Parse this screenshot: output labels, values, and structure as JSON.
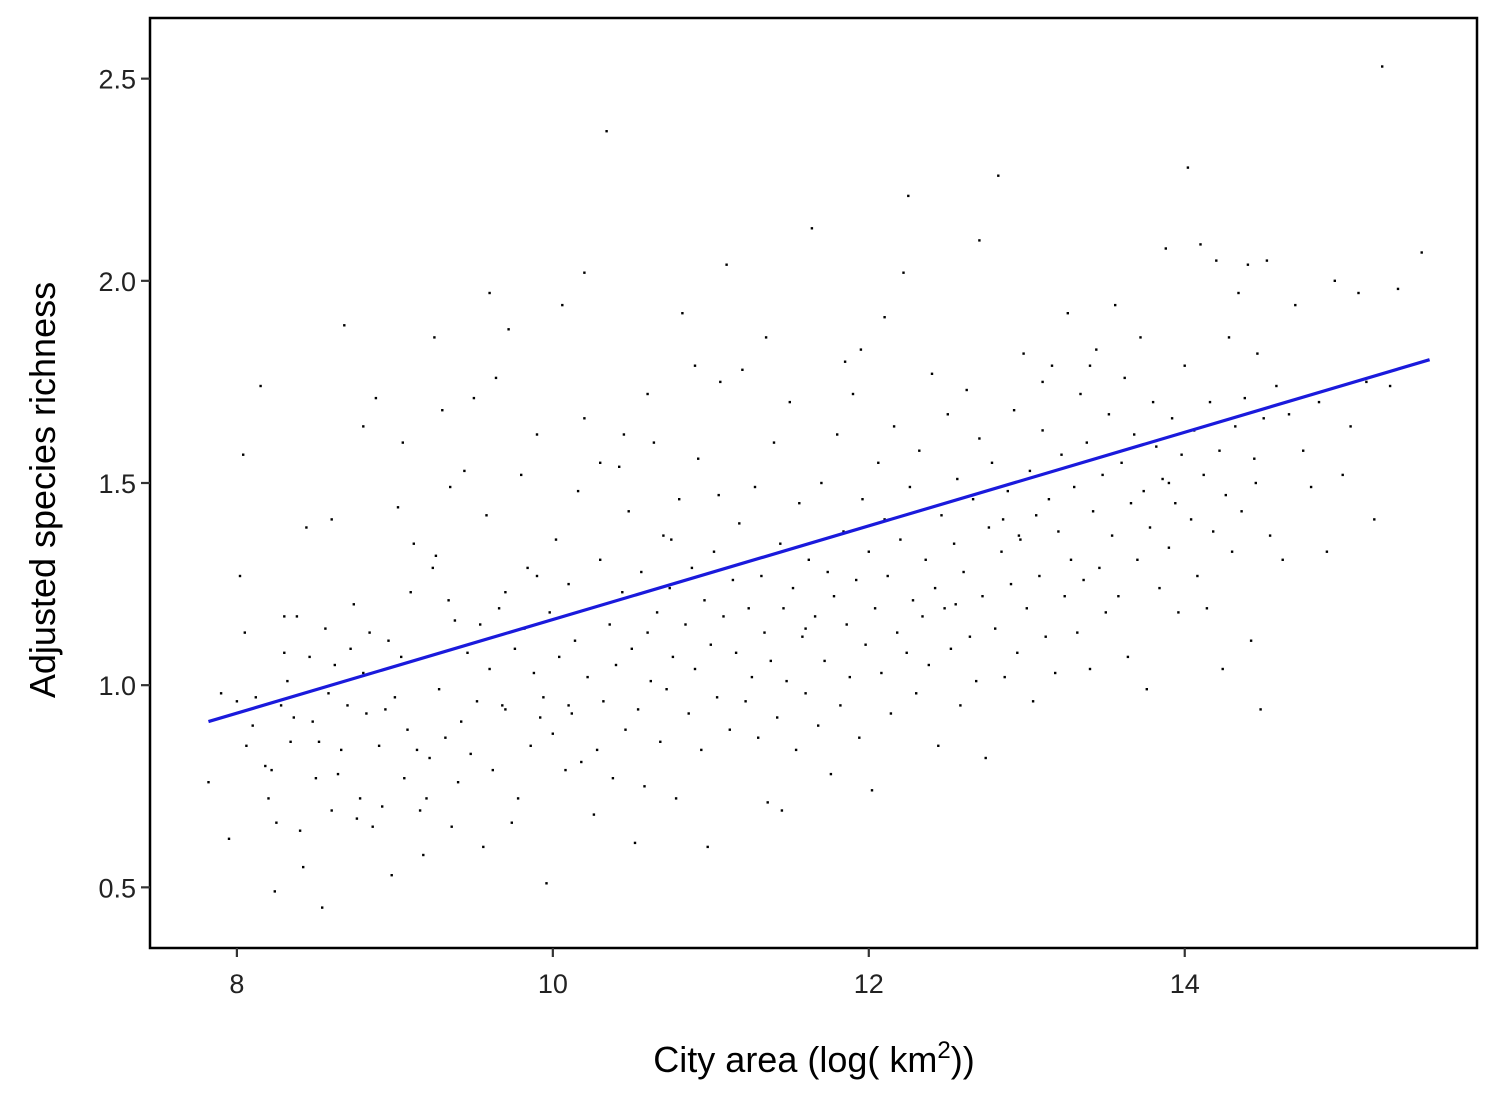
{
  "chart_data": {
    "type": "scatter",
    "title": "",
    "xlabel": "City area (log( km",
    "xlabel_sup": "2",
    "xlabel_end": "))",
    "ylabel": "Adjusted species richness",
    "xlim": [
      7.45,
      15.85
    ],
    "ylim": [
      0.35,
      2.65
    ],
    "x_ticks": [
      8,
      10,
      12,
      14
    ],
    "x_tick_labels": [
      "8",
      "10",
      "12",
      "14"
    ],
    "y_ticks": [
      0.5,
      1.0,
      1.5,
      2.0,
      2.5
    ],
    "y_tick_labels": [
      "0.5",
      "1.0",
      "1.5",
      "2.0",
      "2.5"
    ],
    "grid": false,
    "legend": "none",
    "point_color": "#000000",
    "fit_color": "#1a1adc",
    "fit_line": {
      "x": [
        7.82,
        15.55
      ],
      "y": [
        0.91,
        1.805
      ]
    },
    "points": [
      [
        7.82,
        0.76
      ],
      [
        7.9,
        0.98
      ],
      [
        7.95,
        0.62
      ],
      [
        8.0,
        0.96
      ],
      [
        8.02,
        1.27
      ],
      [
        8.04,
        1.57
      ],
      [
        8.05,
        1.13
      ],
      [
        8.06,
        0.85
      ],
      [
        8.1,
        0.9
      ],
      [
        8.12,
        0.97
      ],
      [
        8.15,
        1.74
      ],
      [
        8.18,
        0.8
      ],
      [
        8.2,
        0.72
      ],
      [
        8.22,
        0.79
      ],
      [
        8.24,
        0.49
      ],
      [
        8.25,
        0.66
      ],
      [
        8.28,
        0.95
      ],
      [
        8.3,
        1.08
      ],
      [
        8.32,
        1.01
      ],
      [
        8.34,
        0.86
      ],
      [
        8.36,
        0.92
      ],
      [
        8.38,
        1.17
      ],
      [
        8.4,
        0.64
      ],
      [
        8.42,
        0.55
      ],
      [
        8.44,
        1.39
      ],
      [
        8.46,
        1.07
      ],
      [
        8.48,
        0.91
      ],
      [
        8.5,
        0.77
      ],
      [
        8.52,
        0.86
      ],
      [
        8.54,
        0.45
      ],
      [
        8.56,
        1.14
      ],
      [
        8.58,
        0.98
      ],
      [
        8.6,
        1.41
      ],
      [
        8.62,
        1.05
      ],
      [
        8.64,
        0.78
      ],
      [
        8.66,
        0.84
      ],
      [
        8.68,
        1.89
      ],
      [
        8.7,
        0.95
      ],
      [
        8.72,
        1.09
      ],
      [
        8.74,
        1.2
      ],
      [
        8.76,
        0.67
      ],
      [
        8.78,
        0.72
      ],
      [
        8.8,
        1.03
      ],
      [
        8.82,
        0.93
      ],
      [
        8.84,
        1.13
      ],
      [
        8.86,
        0.65
      ],
      [
        8.88,
        1.71
      ],
      [
        8.9,
        0.85
      ],
      [
        8.92,
        0.7
      ],
      [
        8.94,
        0.94
      ],
      [
        8.96,
        1.11
      ],
      [
        8.98,
        0.53
      ],
      [
        9.0,
        0.97
      ],
      [
        9.02,
        1.44
      ],
      [
        9.04,
        1.07
      ],
      [
        9.06,
        0.77
      ],
      [
        9.08,
        0.89
      ],
      [
        9.1,
        1.23
      ],
      [
        9.12,
        1.35
      ],
      [
        9.14,
        0.84
      ],
      [
        9.16,
        0.69
      ],
      [
        9.18,
        0.58
      ],
      [
        9.2,
        0.72
      ],
      [
        9.22,
        0.82
      ],
      [
        9.24,
        1.29
      ],
      [
        9.26,
        1.32
      ],
      [
        9.28,
        0.99
      ],
      [
        9.3,
        1.68
      ],
      [
        9.32,
        0.87
      ],
      [
        9.34,
        1.21
      ],
      [
        9.36,
        0.65
      ],
      [
        9.38,
        1.16
      ],
      [
        9.4,
        0.76
      ],
      [
        9.42,
        0.91
      ],
      [
        9.44,
        1.53
      ],
      [
        9.46,
        1.08
      ],
      [
        9.48,
        0.83
      ],
      [
        9.5,
        1.71
      ],
      [
        9.52,
        0.96
      ],
      [
        9.54,
        1.15
      ],
      [
        9.56,
        0.6
      ],
      [
        9.58,
        1.42
      ],
      [
        9.6,
        1.04
      ],
      [
        9.62,
        0.79
      ],
      [
        9.64,
        1.76
      ],
      [
        9.66,
        1.19
      ],
      [
        9.68,
        0.95
      ],
      [
        9.7,
        1.23
      ],
      [
        9.72,
        1.88
      ],
      [
        9.74,
        0.66
      ],
      [
        9.76,
        1.09
      ],
      [
        9.78,
        0.72
      ],
      [
        9.8,
        1.52
      ],
      [
        9.82,
        1.14
      ],
      [
        9.84,
        1.29
      ],
      [
        9.86,
        0.85
      ],
      [
        9.88,
        1.03
      ],
      [
        9.9,
        1.62
      ],
      [
        9.92,
        0.92
      ],
      [
        9.94,
        0.97
      ],
      [
        9.96,
        0.51
      ],
      [
        9.98,
        1.18
      ],
      [
        10.0,
        0.88
      ],
      [
        10.02,
        1.36
      ],
      [
        10.04,
        1.07
      ],
      [
        10.06,
        1.94
      ],
      [
        10.08,
        0.79
      ],
      [
        10.1,
        1.25
      ],
      [
        10.12,
        0.93
      ],
      [
        10.14,
        1.11
      ],
      [
        10.16,
        1.48
      ],
      [
        10.18,
        0.81
      ],
      [
        10.2,
        1.66
      ],
      [
        10.22,
        1.02
      ],
      [
        10.24,
        1.19
      ],
      [
        10.26,
        0.68
      ],
      [
        10.28,
        0.84
      ],
      [
        10.3,
        1.31
      ],
      [
        10.32,
        0.96
      ],
      [
        10.34,
        2.37
      ],
      [
        10.36,
        1.15
      ],
      [
        10.38,
        0.77
      ],
      [
        10.4,
        1.05
      ],
      [
        10.42,
        1.54
      ],
      [
        10.44,
        1.23
      ],
      [
        10.46,
        0.89
      ],
      [
        10.48,
        1.43
      ],
      [
        10.5,
        1.09
      ],
      [
        10.52,
        0.61
      ],
      [
        10.54,
        0.94
      ],
      [
        10.56,
        1.28
      ],
      [
        10.58,
        0.75
      ],
      [
        10.6,
        1.13
      ],
      [
        10.62,
        1.01
      ],
      [
        10.64,
        1.6
      ],
      [
        10.66,
        1.18
      ],
      [
        10.68,
        0.86
      ],
      [
        10.7,
        1.37
      ],
      [
        10.72,
        0.99
      ],
      [
        10.74,
        1.24
      ],
      [
        10.76,
        1.07
      ],
      [
        10.78,
        0.72
      ],
      [
        10.8,
        1.46
      ],
      [
        10.82,
        1.92
      ],
      [
        10.84,
        1.15
      ],
      [
        10.86,
        0.93
      ],
      [
        10.88,
        1.29
      ],
      [
        10.9,
        1.04
      ],
      [
        10.92,
        1.56
      ],
      [
        10.94,
        0.84
      ],
      [
        10.96,
        1.21
      ],
      [
        10.98,
        0.6
      ],
      [
        11.0,
        1.1
      ],
      [
        11.02,
        1.33
      ],
      [
        11.04,
        0.97
      ],
      [
        11.06,
        1.75
      ],
      [
        11.08,
        1.17
      ],
      [
        11.1,
        2.04
      ],
      [
        11.12,
        0.89
      ],
      [
        11.14,
        1.26
      ],
      [
        11.16,
        1.08
      ],
      [
        11.18,
        1.4
      ],
      [
        11.2,
        1.78
      ],
      [
        11.22,
        0.96
      ],
      [
        11.24,
        1.19
      ],
      [
        11.26,
        1.02
      ],
      [
        11.28,
        1.49
      ],
      [
        11.3,
        0.87
      ],
      [
        11.32,
        1.27
      ],
      [
        11.34,
        1.13
      ],
      [
        11.36,
        0.71
      ],
      [
        11.38,
        1.06
      ],
      [
        11.4,
        1.6
      ],
      [
        11.42,
        0.92
      ],
      [
        11.44,
        1.35
      ],
      [
        11.46,
        1.19
      ],
      [
        11.48,
        1.01
      ],
      [
        11.5,
        1.7
      ],
      [
        11.52,
        1.24
      ],
      [
        11.54,
        0.84
      ],
      [
        11.56,
        1.45
      ],
      [
        11.58,
        1.12
      ],
      [
        11.6,
        0.98
      ],
      [
        11.62,
        1.31
      ],
      [
        11.64,
        2.13
      ],
      [
        11.66,
        1.17
      ],
      [
        11.68,
        0.9
      ],
      [
        11.7,
        1.5
      ],
      [
        11.72,
        1.06
      ],
      [
        11.74,
        1.28
      ],
      [
        11.76,
        0.78
      ],
      [
        11.78,
        1.22
      ],
      [
        11.8,
        1.62
      ],
      [
        11.82,
        0.95
      ],
      [
        11.84,
        1.38
      ],
      [
        11.86,
        1.15
      ],
      [
        11.88,
        1.02
      ],
      [
        11.9,
        1.72
      ],
      [
        11.92,
        1.26
      ],
      [
        11.94,
        0.87
      ],
      [
        11.96,
        1.46
      ],
      [
        11.98,
        1.1
      ],
      [
        12.0,
        1.33
      ],
      [
        12.02,
        0.74
      ],
      [
        12.04,
        1.19
      ],
      [
        12.06,
        1.55
      ],
      [
        12.08,
        1.03
      ],
      [
        12.1,
        1.41
      ],
      [
        12.12,
        1.27
      ],
      [
        12.14,
        0.93
      ],
      [
        12.16,
        1.64
      ],
      [
        12.18,
        1.13
      ],
      [
        12.2,
        1.36
      ],
      [
        12.22,
        2.02
      ],
      [
        12.24,
        1.08
      ],
      [
        12.26,
        1.49
      ],
      [
        12.28,
        1.21
      ],
      [
        12.3,
        0.98
      ],
      [
        12.32,
        1.58
      ],
      [
        12.34,
        1.17
      ],
      [
        12.36,
        1.31
      ],
      [
        12.38,
        1.05
      ],
      [
        12.4,
        1.77
      ],
      [
        12.42,
        1.24
      ],
      [
        12.44,
        0.85
      ],
      [
        12.46,
        1.42
      ],
      [
        12.48,
        1.19
      ],
      [
        12.5,
        1.67
      ],
      [
        12.52,
        1.09
      ],
      [
        12.54,
        1.35
      ],
      [
        12.56,
        1.51
      ],
      [
        12.58,
        0.95
      ],
      [
        12.6,
        1.28
      ],
      [
        12.62,
        1.73
      ],
      [
        12.64,
        1.12
      ],
      [
        12.66,
        1.46
      ],
      [
        12.68,
        1.01
      ],
      [
        12.7,
        1.61
      ],
      [
        12.72,
        1.22
      ],
      [
        12.74,
        0.82
      ],
      [
        12.76,
        1.39
      ],
      [
        12.78,
        1.55
      ],
      [
        12.8,
        1.14
      ],
      [
        12.82,
        2.26
      ],
      [
        12.84,
        1.33
      ],
      [
        12.86,
        1.02
      ],
      [
        12.88,
        1.48
      ],
      [
        12.9,
        1.25
      ],
      [
        12.92,
        1.68
      ],
      [
        12.94,
        1.08
      ],
      [
        12.96,
        1.36
      ],
      [
        12.98,
        1.82
      ],
      [
        13.0,
        1.19
      ],
      [
        13.02,
        1.53
      ],
      [
        13.04,
        0.96
      ],
      [
        13.06,
        1.42
      ],
      [
        13.08,
        1.27
      ],
      [
        13.1,
        1.63
      ],
      [
        13.12,
        1.12
      ],
      [
        13.14,
        1.46
      ],
      [
        13.16,
        1.79
      ],
      [
        13.18,
        1.03
      ],
      [
        13.2,
        1.38
      ],
      [
        13.22,
        1.57
      ],
      [
        13.24,
        1.22
      ],
      [
        13.26,
        1.92
      ],
      [
        13.28,
        1.31
      ],
      [
        13.3,
        1.49
      ],
      [
        13.32,
        1.13
      ],
      [
        13.34,
        1.72
      ],
      [
        13.36,
        1.26
      ],
      [
        13.38,
        1.6
      ],
      [
        13.4,
        1.04
      ],
      [
        13.42,
        1.43
      ],
      [
        13.44,
        1.83
      ],
      [
        13.46,
        1.29
      ],
      [
        13.48,
        1.52
      ],
      [
        13.5,
        1.18
      ],
      [
        13.52,
        1.67
      ],
      [
        13.54,
        1.37
      ],
      [
        13.56,
        1.94
      ],
      [
        13.58,
        1.22
      ],
      [
        13.6,
        1.55
      ],
      [
        13.62,
        1.76
      ],
      [
        13.64,
        1.07
      ],
      [
        13.66,
        1.45
      ],
      [
        13.68,
        1.62
      ],
      [
        13.7,
        1.31
      ],
      [
        13.72,
        1.86
      ],
      [
        13.74,
        1.48
      ],
      [
        13.76,
        0.99
      ],
      [
        13.78,
        1.39
      ],
      [
        13.8,
        1.7
      ],
      [
        13.82,
        1.59
      ],
      [
        13.84,
        1.24
      ],
      [
        13.86,
        1.51
      ],
      [
        13.88,
        2.08
      ],
      [
        13.9,
        1.34
      ],
      [
        13.92,
        1.66
      ],
      [
        13.94,
        1.45
      ],
      [
        13.96,
        1.18
      ],
      [
        13.98,
        1.57
      ],
      [
        14.0,
        1.79
      ],
      [
        14.02,
        2.28
      ],
      [
        14.04,
        1.41
      ],
      [
        14.06,
        1.63
      ],
      [
        14.08,
        1.27
      ],
      [
        14.1,
        2.09
      ],
      [
        14.12,
        1.52
      ],
      [
        14.14,
        1.19
      ],
      [
        14.16,
        1.7
      ],
      [
        14.18,
        1.38
      ],
      [
        14.2,
        2.05
      ],
      [
        14.22,
        1.58
      ],
      [
        14.24,
        1.04
      ],
      [
        14.26,
        1.47
      ],
      [
        14.28,
        1.86
      ],
      [
        14.3,
        1.33
      ],
      [
        14.32,
        1.64
      ],
      [
        14.34,
        1.97
      ],
      [
        14.36,
        1.43
      ],
      [
        14.38,
        1.71
      ],
      [
        14.4,
        2.04
      ],
      [
        14.42,
        1.11
      ],
      [
        14.44,
        1.56
      ],
      [
        14.46,
        1.82
      ],
      [
        14.48,
        0.94
      ],
      [
        14.5,
        1.66
      ],
      [
        14.52,
        2.05
      ],
      [
        14.54,
        1.37
      ],
      [
        14.58,
        1.74
      ],
      [
        14.62,
        1.31
      ],
      [
        14.66,
        1.67
      ],
      [
        14.7,
        1.94
      ],
      [
        14.75,
        1.58
      ],
      [
        14.8,
        1.49
      ],
      [
        14.85,
        1.7
      ],
      [
        14.9,
        1.33
      ],
      [
        14.95,
        2.0
      ],
      [
        15.0,
        1.52
      ],
      [
        15.05,
        1.64
      ],
      [
        15.1,
        1.97
      ],
      [
        15.15,
        1.75
      ],
      [
        15.2,
        1.41
      ],
      [
        15.25,
        2.53
      ],
      [
        15.3,
        1.74
      ],
      [
        15.35,
        1.98
      ],
      [
        15.5,
        2.07
      ],
      [
        8.3,
        1.17
      ],
      [
        8.6,
        0.69
      ],
      [
        9.05,
        1.6
      ],
      [
        9.35,
        1.49
      ],
      [
        9.7,
        0.94
      ],
      [
        10.1,
        0.95
      ],
      [
        10.45,
        1.62
      ],
      [
        10.75,
        1.36
      ],
      [
        11.05,
        1.47
      ],
      [
        11.45,
        0.69
      ],
      [
        11.85,
        1.8
      ],
      [
        12.25,
        2.21
      ],
      [
        12.55,
        1.2
      ],
      [
        12.95,
        1.37
      ],
      [
        13.4,
        1.79
      ],
      [
        13.9,
        1.5
      ],
      [
        14.45,
        1.5
      ],
      [
        8.8,
        1.64
      ],
      [
        9.25,
        1.86
      ],
      [
        10.2,
        2.02
      ],
      [
        10.9,
        1.79
      ],
      [
        11.95,
        1.83
      ],
      [
        9.6,
        1.97
      ],
      [
        11.35,
        1.86
      ],
      [
        12.7,
        2.1
      ],
      [
        10.6,
        1.72
      ],
      [
        12.1,
        1.91
      ],
      [
        13.1,
        1.75
      ],
      [
        9.9,
        1.27
      ],
      [
        10.3,
        1.55
      ],
      [
        11.6,
        1.14
      ],
      [
        12.85,
        1.41
      ]
    ]
  }
}
